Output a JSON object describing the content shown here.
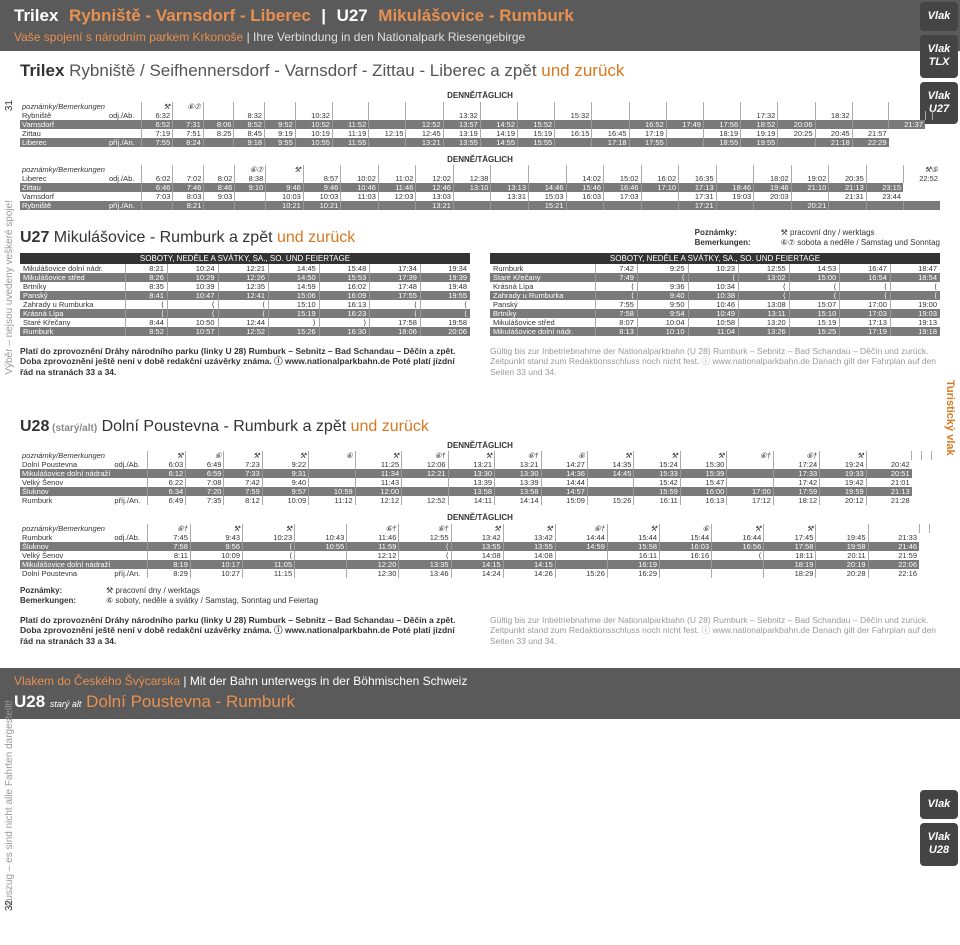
{
  "header": {
    "trilex": "Trilex",
    "route1": "Rybniště - Varnsdorf - Liberec",
    "u27": "U27",
    "route2": "Mikulášovice - Rumburk",
    "sub_cz": "Vaše spojení s národním parkem Krkonoše",
    "sub_de": "Ihre Verbindung in den Nationalpark Riesengebirge"
  },
  "badges": [
    "Vlak",
    "Vlak TLX",
    "Vlak U27"
  ],
  "badges2": [
    "Vlak",
    "Vlak U28"
  ],
  "page_left": "31",
  "page_left2": "32",
  "side_left": "Výběr – nejsou uvedeny veškeré spoje!",
  "side_left2": "Auszug – es sind nicht alle Fahrten dargestellt!",
  "side_right": "Turistický vlak",
  "title1": {
    "bold": "Trilex",
    "mid": " Rybniště / Seifhennersdorf - Varnsdorf - Zittau - Liberec a zpět",
    "orange": " und zurück"
  },
  "denne": "DENNĚ/TÄGLICH",
  "t1": {
    "note": "poznámky/Bemerkungen",
    "icons": [
      "⚒",
      "⑥⑦",
      "",
      "",
      "",
      "",
      "",
      "",
      "",
      "",
      "",
      "",
      "",
      "",
      "",
      "",
      "",
      "",
      "",
      "",
      "",
      ""
    ],
    "rows": [
      [
        "Rybniště",
        "odj./Ab.",
        "6:32",
        "",
        "",
        "8:32",
        "",
        "10:32",
        "",
        "",
        "",
        "13:32",
        "",
        "",
        "15:32",
        "",
        "",
        "",
        "",
        "17:32",
        "",
        "18:32",
        "",
        "",
        "",
        ""
      ],
      [
        "Varnsdorf",
        "",
        "6:52",
        "7:31",
        "8:06",
        "8:52",
        "9:52",
        "10:52",
        "11:52",
        "",
        "12:52",
        "13:57",
        "14:52",
        "15:52",
        "",
        "",
        "16:52",
        "17:49",
        "17:56",
        "18:52",
        "20:06",
        "",
        "",
        "21:37"
      ],
      [
        "Zittau",
        "",
        "7:19",
        "7:51",
        "8:25",
        "8:45",
        "9:19",
        "10:19",
        "11:19",
        "12:15",
        "12:45",
        "13:19",
        "14:19",
        "15:19",
        "16:15",
        "16:45",
        "17:19",
        "",
        "18:19",
        "19:19",
        "20:25",
        "20:45",
        "21:57"
      ],
      [
        "Liberec",
        "příj./An.",
        "7:55",
        "8:24",
        "",
        "9:18",
        "9:55",
        "10:55",
        "11:55",
        "",
        "13:21",
        "13:55",
        "14:55",
        "15:55",
        "",
        "17:18",
        "17:55",
        "",
        "18:55",
        "19:55",
        "",
        "21:18",
        "22:29"
      ]
    ]
  },
  "t2": {
    "note": "poznámky/Bemerkungen",
    "icons": [
      "",
      "",
      "",
      "⑥⑦",
      "⚒",
      "",
      "",
      "",
      "",
      "",
      "",
      "",
      "",
      "",
      "",
      "",
      "",
      "",
      "",
      "",
      "",
      "⚒⑤"
    ],
    "rows": [
      [
        "Liberec",
        "odj./Ab.",
        "6:02",
        "7:02",
        "8:02",
        "8:38",
        "",
        "8:57",
        "10:02",
        "11:02",
        "12:02",
        "12:38",
        "",
        "",
        "14:02",
        "15:02",
        "16:02",
        "16:35",
        "",
        "18:02",
        "19:02",
        "20:35",
        "",
        "22:52"
      ],
      [
        "Zittau",
        "",
        "6:46",
        "7:46",
        "8:46",
        "9:10",
        "9:46",
        "9:46",
        "10:46",
        "11:46",
        "12:46",
        "13:10",
        "13:13",
        "14:46",
        "15:46",
        "16:46",
        "17:10",
        "17:13",
        "18:46",
        "19:46",
        "21:10",
        "21:13",
        "23:15"
      ],
      [
        "Varnsdorf",
        "",
        "7:03",
        "8:03",
        "9:03",
        "",
        "10:03",
        "10:03",
        "11:03",
        "12:03",
        "13:03",
        "",
        "13:31",
        "15:03",
        "16:03",
        "17:03",
        "",
        "17:31",
        "19:03",
        "20:03",
        "",
        "21:31",
        "23:44"
      ],
      [
        "Rybniště",
        "příj./An.",
        "",
        "8:21",
        "",
        "",
        "10:21",
        "10:21",
        "",
        "",
        "13:21",
        "",
        "",
        "15:21",
        "",
        "",
        "",
        "17:21",
        "",
        "",
        "20:21",
        "",
        "",
        ""
      ]
    ]
  },
  "u27_title": {
    "bold": "U27",
    "mid": " Mikulášovice - Rumburk a zpět",
    "orange": " und zurück"
  },
  "pozn": {
    "label1": "Poznámky:",
    "val1": "⚒ pracovní dny / werktags",
    "label2": "Bemerkungen:",
    "val2": "⑥⑦ sobota a neděle / Samstag und Sonntag"
  },
  "sat_header": "SOBOTY, NEDĚLE A SVÁTKY, SA., SO. UND FEIERTAGE",
  "u27a": {
    "stations": [
      "Mikulášovice dolní nádr.",
      "Mikulášovice střed",
      "Brtníky",
      "Panský",
      "Zahrady u Rumburka",
      "Krásná Lípa",
      "Staré Křečany",
      "Rumburk"
    ],
    "times": [
      [
        "8:21",
        "10:24",
        "12:21",
        "14:45",
        "15:48",
        "17:34",
        "19:34"
      ],
      [
        "8:26",
        "10:29",
        "12:26",
        "14:50",
        "15:53",
        "17:39",
        "19:39"
      ],
      [
        "8:35",
        "10:39",
        "12:35",
        "14:59",
        "16:02",
        "17:48",
        "19:48"
      ],
      [
        "8:41",
        "10:47",
        "12:41",
        "15:06",
        "16:09",
        "17:55",
        "19:55"
      ],
      [
        "⟨",
        "⟨",
        "⟨",
        "15:10",
        "16:13",
        "⟨",
        "⟨"
      ],
      [
        "⟨",
        "⟨",
        "⟨",
        "15:19",
        "16:23",
        "⟨",
        "⟨"
      ],
      [
        "8:44",
        "10:50",
        "12:44",
        "⟩",
        "⟩",
        "17:58",
        "19:58"
      ],
      [
        "8:52",
        "10:57",
        "12:52",
        "15:26",
        "16:30",
        "18:06",
        "20:06"
      ]
    ]
  },
  "u27b": {
    "stations": [
      "Rumburk",
      "Staré Křečany",
      "Krásná Lípa",
      "Zahrady u Rumburka",
      "Panský",
      "Brtníky",
      "Mikulášovice střed",
      "Mikulášovice dolní nádr."
    ],
    "times": [
      [
        "7:42",
        "9:25",
        "10:23",
        "12:55",
        "14:53",
        "16:47",
        "18:47"
      ],
      [
        "7:49",
        "⟨",
        "⟨",
        "13:02",
        "15:00",
        "16:54",
        "18:54"
      ],
      [
        "⟨",
        "9:36",
        "10:34",
        "⟨",
        "⟨",
        "⟨",
        "⟨"
      ],
      [
        "⟨",
        "9:40",
        "10:38",
        "⟨",
        "⟨",
        "⟨",
        "⟨"
      ],
      [
        "7:55",
        "9:50",
        "10:46",
        "13:08",
        "15:07",
        "17:00",
        "19:00"
      ],
      [
        "7:58",
        "9:54",
        "10:49",
        "13:11",
        "15:10",
        "17:03",
        "19:03"
      ],
      [
        "8:07",
        "10:04",
        "10:58",
        "13:20",
        "15:19",
        "17:13",
        "19:13"
      ],
      [
        "8:13",
        "10:10",
        "11:04",
        "13:26",
        "15:25",
        "17:19",
        "19:18"
      ]
    ]
  },
  "note": {
    "cz": "Platí do zprovoznění Dráhy národního parku (linky U 28) Rumburk – Sebnitz – Bad Schandau – Děčín a zpět. Doba zprovoznění ještě není v době redakční uzávěrky známa. ⓘ www.nationalparkbahn.de Poté platí jízdní řád na stranách 33 a 34.",
    "de": "Gültig bis zur Inbetriebnahme der Nationalparkbahn (U 28) Rumburk – Sebnitz – Bad Schandau – Děčín und zurück. Zeitpunkt stand zum Redaktionsschluss noch nicht fest. ⓘ www.nationalparkbahn.de Danach gilt der Fahrplan auf den Seiten 33 und 34."
  },
  "u28_title": {
    "bold": "U28",
    "alt": " (starý/alt)",
    "mid": " Dolní Poustevna - Rumburk a zpět",
    "orange": " und zurück"
  },
  "t3": {
    "note": "poznámky/Bemerkungen",
    "icons": [
      "⚒",
      "⑥",
      "⚒",
      "⚒",
      "⑥",
      "⚒",
      "⑥†",
      "⚒",
      "⑥†",
      "⑥",
      "⚒",
      "⚒",
      "⚒",
      "⑥†",
      "⑥†",
      "⚒",
      "",
      "",
      "",
      ""
    ],
    "rows": [
      [
        "Dolní Poustevna",
        "odj./Ab.",
        "6:03",
        "6:49",
        "7:23",
        "9:22",
        "",
        "11:25",
        "12:06",
        "13:21",
        "13:21",
        "14:27",
        "14:35",
        "15:24",
        "15:30",
        "",
        "17:24",
        "19:24",
        "20:42"
      ],
      [
        "Mikulášovice dolní nádraží",
        "",
        "6:12",
        "6:59",
        "7:33",
        "9:31",
        "",
        "11:34",
        "12:21",
        "13:30",
        "13:30",
        "14:36",
        "14:45",
        "15:33",
        "15:39",
        "",
        "17:33",
        "19:33",
        "20:51"
      ],
      [
        "Velký Šenov",
        "",
        "6:22",
        "7:08",
        "7:42",
        "9:40",
        "",
        "11:43",
        "",
        "13:39",
        "13:39",
        "14:44",
        "",
        "15:42",
        "15:47",
        "",
        "17:42",
        "19:42",
        "21:01"
      ],
      [
        "Šluknov",
        "",
        "6:34",
        "7:20",
        "7:59",
        "9:57",
        "10:59",
        "12:00",
        "",
        "13:58",
        "13:58",
        "14:57",
        "",
        "15:59",
        "16:00",
        "17:00",
        "17:59",
        "19:59",
        "21:13"
      ],
      [
        "Rumburk",
        "příj./An.",
        "6:49",
        "7:35",
        "8:12",
        "10:09",
        "11:12",
        "12:12",
        "12:52",
        "14:11",
        "14:14",
        "15:09",
        "15:26",
        "16:11",
        "16:13",
        "17:12",
        "18:12",
        "20:12",
        "21:28"
      ]
    ]
  },
  "t4": {
    "note": "poznámky/Bemerkungen",
    "icons": [
      "⑥†",
      "⚒",
      "⚒",
      "",
      "⑥†",
      "⑥†",
      "⚒",
      "⚒",
      "⑥†",
      "⚒",
      "⑥",
      "⚒",
      "⚒",
      "",
      "",
      "",
      ""
    ],
    "rows": [
      [
        "Rumburk",
        "odj./Ab.",
        "7:45",
        "9:43",
        "10:23",
        "10:43",
        "11:46",
        "12:55",
        "13:42",
        "13:42",
        "14:44",
        "15:44",
        "15:44",
        "16:44",
        "17:45",
        "19:45",
        "21:33"
      ],
      [
        "Šluknov",
        "",
        "7:58",
        "9:56",
        "⟨",
        "10:55",
        "11:59",
        "⟨",
        "13:55",
        "13:55",
        "14:59",
        "15:58",
        "16:03",
        "16:56",
        "17:58",
        "19:58",
        "21:46"
      ],
      [
        "Velký Šenov",
        "",
        "8:11",
        "10:09",
        "⟨",
        "",
        "12:12",
        "⟨",
        "14:08",
        "14:08",
        "",
        "16:11",
        "16:16",
        "⟨",
        "18:11",
        "20:11",
        "21:59"
      ],
      [
        "Mikulášovice dolní nádraží",
        "",
        "8:19",
        "10:17",
        "11:05",
        "",
        "12:20",
        "13:35",
        "14:15",
        "14:15",
        "",
        "16:19",
        "",
        "",
        "18:19",
        "20:19",
        "22:06"
      ],
      [
        "Dolní Poustevna",
        "příj./An.",
        "8:29",
        "10:27",
        "11:15",
        "",
        "12:30",
        "13:46",
        "14:24",
        "14:26",
        "15:26",
        "16:29",
        "",
        "",
        "18:29",
        "20:28",
        "22:16"
      ]
    ]
  },
  "pozn2": {
    "label1": "Poznámky:",
    "val1": "⚒ pracovní dny / werktags",
    "label2": "Bemerkungen:",
    "val2": "⑥ soboty, neděle a svátky / Samstag, Sonntag und Feiertag"
  },
  "note2": {
    "cz": "Platí do zprovoznění Dráhy národního parku (linky U 28) Rumburk – Sebnitz – Bad Schandau – Děčín a zpět. Doba zprovoznění ještě není v době redakční uzávěrky známa. ⓘ www.nationalparkbahn.de Poté platí jízdní řád na stranách 33 a 34.",
    "de": "Gültig bis zur Inbetriebnahme der Nationalparkbahn (U 28) Rumburk – Sebnitz – Bad Schandau – Děčín und zurück. Zeitpunkt stand zum Redaktionsschluss noch nicht fest. ⓘ www.nationalparkbahn.de Danach gilt der Fahrplan auf den Seiten 33 und 34."
  },
  "footer": {
    "top_cz": "Vlakem do Českého Švýcarska",
    "top_de": "Mit der Bahn unterwegs in der Böhmischen Schweiz",
    "u28": "U28",
    "alt": "starý alt",
    "route": "Dolní Poustevna - Rumburk"
  }
}
